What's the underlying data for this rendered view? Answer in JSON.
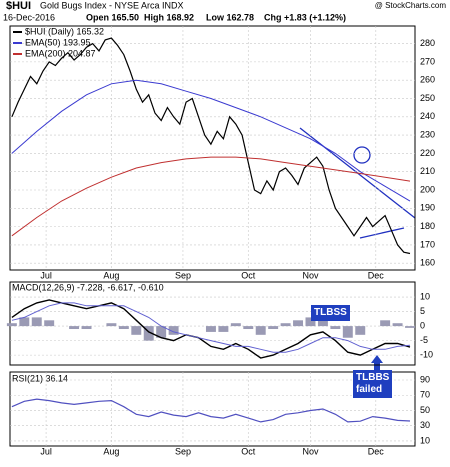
{
  "header": {
    "symbol": "$HUI",
    "title": "Gold Bugs Index - NYSE Arca INDX",
    "watermark": "@ StockCharts.com",
    "date": "16-Dec-2016",
    "open": "Open 165.50",
    "high": "High 168.92",
    "low": "Low 162.78",
    "change": "Chg +1.83 (+1.12%)"
  },
  "chart_data": [
    {
      "type": "line",
      "ylim": [
        156.3,
        289.6
      ],
      "xlim": [
        -0.6,
        129.6
      ],
      "yticks": [
        160,
        170,
        180,
        190,
        200,
        210,
        220,
        230,
        240,
        250,
        260,
        270,
        280
      ],
      "xticks": [
        {
          "value": 11,
          "label": "Jul"
        },
        {
          "value": 32,
          "label": "Aug"
        },
        {
          "value": 55,
          "label": "Sep"
        },
        {
          "value": 76,
          "label": "Oct"
        },
        {
          "value": 96,
          "label": "Nov"
        },
        {
          "value": 117,
          "label": "Dec"
        }
      ],
      "grid": true,
      "series": [
        {
          "name": "$HUI (Daily) 165.32",
          "color": "#000000",
          "x": [
            0,
            2,
            4,
            6,
            8,
            10,
            12,
            14,
            16,
            18,
            20,
            22,
            24,
            26,
            28,
            30,
            32,
            34,
            36,
            38,
            40,
            42,
            44,
            46,
            48,
            50,
            52,
            54,
            56,
            58,
            60,
            62,
            64,
            66,
            68,
            70,
            72,
            74,
            76,
            78,
            80,
            82,
            84,
            86,
            88,
            90,
            92,
            94,
            96,
            98,
            100,
            102,
            104,
            106,
            108,
            110,
            112,
            114,
            116,
            118,
            120,
            122,
            124,
            126,
            128
          ],
          "values": [
            240,
            248,
            255,
            262,
            258,
            265,
            270,
            268,
            272,
            275,
            271,
            274,
            278,
            280,
            276,
            282,
            283,
            279,
            274,
            265,
            255,
            248,
            252,
            242,
            238,
            245,
            240,
            236,
            248,
            250,
            240,
            230,
            225,
            232,
            228,
            240,
            236,
            230,
            215,
            200,
            198,
            205,
            200,
            210,
            212,
            208,
            203,
            212,
            215,
            218,
            213,
            200,
            190,
            185,
            180,
            175,
            180,
            185,
            180,
            183,
            186,
            178,
            170,
            166,
            165.32
          ]
        },
        {
          "name": "EMA(50) 193.95",
          "color": "#3a3ad0",
          "x": [
            0,
            8,
            16,
            24,
            32,
            40,
            48,
            56,
            64,
            72,
            80,
            88,
            96,
            104,
            112,
            120,
            128
          ],
          "values": [
            220,
            232,
            243,
            252,
            258,
            260,
            258,
            254,
            250,
            245,
            240,
            234,
            228,
            220,
            210,
            202,
            193.95
          ]
        },
        {
          "name": "EMA(200) 204.87",
          "color": "#c03030",
          "x": [
            0,
            8,
            16,
            24,
            32,
            40,
            48,
            56,
            64,
            72,
            80,
            88,
            96,
            104,
            112,
            120,
            128
          ],
          "values": [
            175,
            185,
            194,
            201,
            207,
            212,
            215,
            217,
            218,
            218,
            217,
            215,
            213,
            211,
            209,
            207,
            204.87
          ]
        }
      ]
    },
    {
      "type": "macd",
      "legend": "MACD(12,26,9) -7.228, -6.617, -0.610",
      "ylim": [
        -13.4,
        15.2
      ],
      "xlim": [
        -0.6,
        129.6
      ],
      "yticks": [
        -10,
        -5,
        0,
        5,
        10
      ],
      "grid": true,
      "annotations": [
        "TLBSS",
        "TLBBS\nfailed"
      ],
      "x": [
        0,
        4,
        8,
        12,
        16,
        20,
        24,
        28,
        32,
        36,
        40,
        44,
        48,
        52,
        56,
        60,
        64,
        68,
        72,
        76,
        80,
        84,
        88,
        92,
        96,
        100,
        104,
        108,
        112,
        116,
        120,
        124,
        128
      ],
      "series": [
        {
          "color": "#000000",
          "values": [
            3,
            6,
            8,
            9,
            8,
            7,
            6,
            7,
            8,
            6,
            2,
            -2,
            -4,
            -5,
            -3,
            -4,
            -7,
            -8,
            -6,
            -8,
            -11,
            -10,
            -8,
            -6,
            -3,
            -2,
            -5,
            -9,
            -10,
            -8,
            -6,
            -6,
            -7.228
          ]
        },
        {
          "color": "#6060d0",
          "values": [
            2,
            3,
            5,
            7,
            8,
            8,
            7,
            7,
            7,
            7,
            5,
            3,
            0,
            -2,
            -3,
            -4,
            -5,
            -6,
            -7,
            -7,
            -8,
            -9,
            -9,
            -8,
            -6,
            -4,
            -4,
            -5,
            -7,
            -8,
            -8,
            -7,
            -6.617
          ]
        },
        {
          "color": "#9a9ab4",
          "kind": "histogram",
          "values": [
            1,
            3,
            3,
            2,
            0,
            -1,
            -1,
            0,
            1,
            -1,
            -3,
            -5,
            -4,
            -3,
            0,
            0,
            -2,
            -2,
            1,
            -1,
            -3,
            -1,
            1,
            2,
            3,
            2,
            -1,
            -4,
            -3,
            0,
            2,
            1,
            -0.61
          ]
        }
      ]
    },
    {
      "type": "line",
      "legend": "RSI(21) 36.14",
      "ylim": [
        3.4,
        100.5
      ],
      "xlim": [
        -0.6,
        129.6
      ],
      "yticks": [
        10,
        30,
        50,
        70,
        90
      ],
      "grid": true,
      "xticks": [
        {
          "value": 11,
          "label": "Jul"
        },
        {
          "value": 32,
          "label": "Aug"
        },
        {
          "value": 55,
          "label": "Sep"
        },
        {
          "value": 76,
          "label": "Oct"
        },
        {
          "value": 96,
          "label": "Nov"
        },
        {
          "value": 117,
          "label": "Dec"
        }
      ],
      "series": [
        {
          "color": "#5050c0",
          "x": [
            0,
            4,
            8,
            12,
            16,
            20,
            24,
            28,
            32,
            36,
            40,
            44,
            48,
            52,
            56,
            60,
            64,
            68,
            72,
            76,
            80,
            84,
            88,
            92,
            96,
            100,
            104,
            108,
            112,
            116,
            120,
            124,
            128
          ],
          "values": [
            55,
            62,
            65,
            63,
            60,
            58,
            60,
            62,
            63,
            55,
            45,
            42,
            48,
            44,
            42,
            47,
            42,
            40,
            45,
            40,
            35,
            38,
            45,
            47,
            50,
            52,
            45,
            35,
            36,
            42,
            40,
            37,
            36.14
          ]
        }
      ]
    }
  ]
}
